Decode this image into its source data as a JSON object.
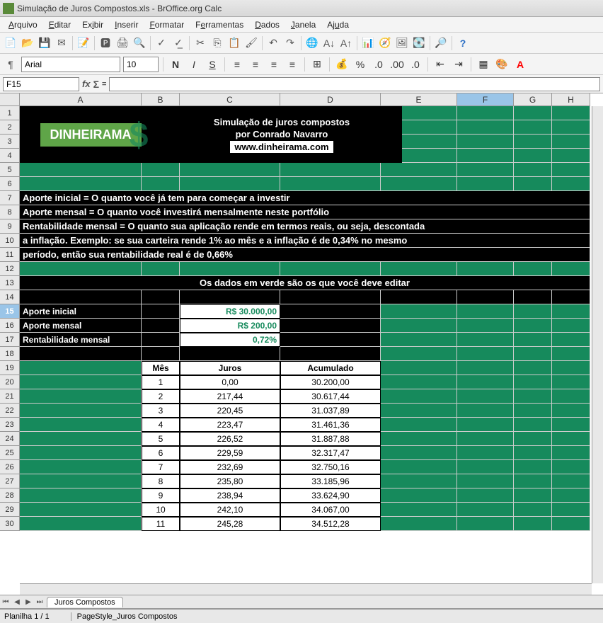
{
  "window": {
    "title": "Simulação de Juros Compostos.xls - BrOffice.org Calc"
  },
  "menu": [
    "Arquivo",
    "Editar",
    "Exibir",
    "Inserir",
    "Formatar",
    "Ferramentas",
    "Dados",
    "Janela",
    "Ajuda"
  ],
  "menu_underline": [
    0,
    0,
    2,
    0,
    0,
    1,
    0,
    0,
    2
  ],
  "format": {
    "font": "Arial",
    "size": "10"
  },
  "cellref": "F15",
  "columns": [
    {
      "label": "A",
      "width": 172
    },
    {
      "label": "B",
      "width": 54
    },
    {
      "label": "C",
      "width": 142
    },
    {
      "label": "D",
      "width": 142
    },
    {
      "label": "E",
      "width": 108
    },
    {
      "label": "F",
      "width": 80,
      "active": true
    },
    {
      "label": "G",
      "width": 54
    },
    {
      "label": "H",
      "width": 54
    }
  ],
  "row_count": 30,
  "active_row": 15,
  "logo": "DINHEIRAMA",
  "titles": {
    "line1": "Simulação de juros compostos",
    "line2": "por Conrado Navarro",
    "link": "www.dinheirama.com"
  },
  "explain": [
    "Aporte inicial = O quanto você já tem para começar a investir",
    "Aporte mensal = O quanto você investirá mensalmente neste portfólio",
    "Rentabilidade mensal = O quanto sua aplicação rende em termos reais, ou seja, descontada",
    "a inflação. Exemplo: se sua carteira rende 1% ao mês e a inflação é de 0,34% no mesmo",
    "período, então sua rentabilidade real é de 0,66%"
  ],
  "instruction": "Os dados em verde são os que você deve editar",
  "inputs": [
    {
      "label": "Aporte inicial",
      "value": "R$ 30.000,00"
    },
    {
      "label": "Aporte mensal",
      "value": "R$ 200,00"
    },
    {
      "label": "Rentabilidade mensal",
      "value": "0,72%"
    }
  ],
  "table_headers": [
    "Mês",
    "Juros",
    "Acumulado"
  ],
  "table_rows": [
    [
      "1",
      "0,00",
      "30.200,00"
    ],
    [
      "2",
      "217,44",
      "30.617,44"
    ],
    [
      "3",
      "220,45",
      "31.037,89"
    ],
    [
      "4",
      "223,47",
      "31.461,36"
    ],
    [
      "5",
      "226,52",
      "31.887,88"
    ],
    [
      "6",
      "229,59",
      "32.317,47"
    ],
    [
      "7",
      "232,69",
      "32.750,16"
    ],
    [
      "8",
      "235,80",
      "33.185,96"
    ],
    [
      "9",
      "238,94",
      "33.624,90"
    ],
    [
      "10",
      "242,10",
      "34.067,00"
    ],
    [
      "11",
      "245,28",
      "34.512,28"
    ]
  ],
  "sheet_tab": "Juros Compostos",
  "status": {
    "left": "Planilha 1 / 1",
    "style": "PageStyle_Juros Compostos"
  },
  "colors": {
    "green": "#168a5c",
    "logo_green": "#5fa548",
    "black": "#000000"
  }
}
